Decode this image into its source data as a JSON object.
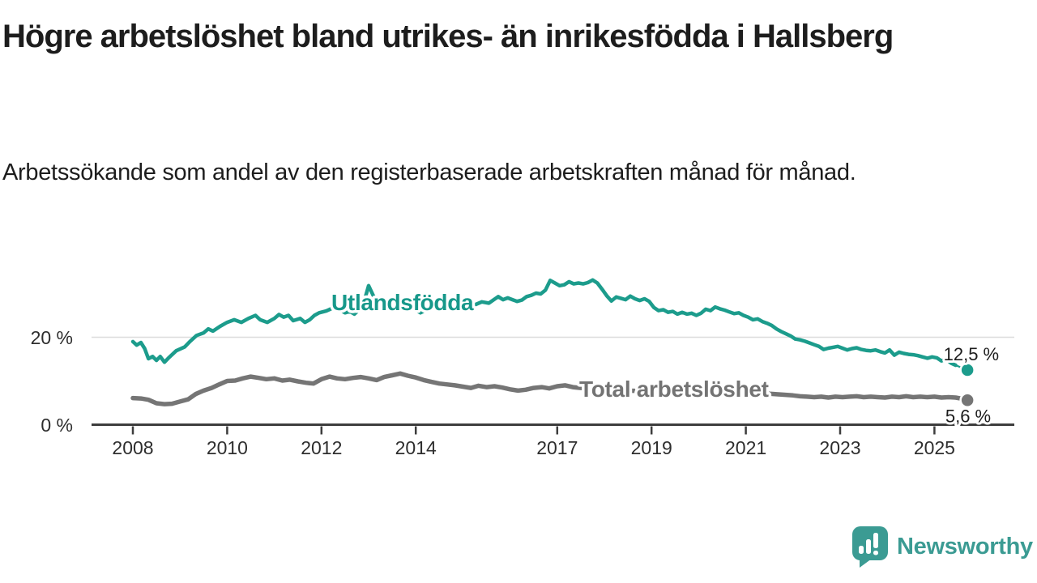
{
  "header": {
    "title": "Högre arbetslöshet bland utrikes- än inrikesfödda i Hallsberg",
    "subtitle": "Arbetssökande som andel av den registerbaserade arbetskraften månad för månad."
  },
  "footer": {
    "brand": "Newsworthy",
    "logo_icon": "newsworthy-speech-bubble-bar-chart",
    "logo_color": "#3b9b93"
  },
  "colors": {
    "accent_teal": "#1c9c8c",
    "series_grey": "#757575",
    "grey_label": "#737373",
    "axis": "#3d3d3d",
    "gridline": "#dcdcdc",
    "text": "#1d1d1d"
  },
  "chart_data": {
    "type": "line",
    "unit": "%",
    "x_range": [
      2008,
      2025.7
    ],
    "x_ticks": [
      {
        "value": 2008,
        "label": "2008"
      },
      {
        "value": 2010,
        "label": "2010"
      },
      {
        "value": 2012,
        "label": "2012"
      },
      {
        "value": 2014,
        "label": "2014"
      },
      {
        "value": 2017,
        "label": "2017"
      },
      {
        "value": 2019,
        "label": "2019"
      },
      {
        "value": 2021,
        "label": "2021"
      },
      {
        "value": 2023,
        "label": "2023"
      },
      {
        "value": 2025,
        "label": "2025"
      }
    ],
    "y_ticks": [
      {
        "value": 0,
        "label": "0 %"
      },
      {
        "value": 20,
        "label": "20 %"
      }
    ],
    "series": [
      {
        "name": "Utlandsfödda",
        "color": "#1c9c8c",
        "end_label": "12,5 %",
        "end_point": [
          2025.7,
          12.5
        ],
        "points": [
          [
            2008.0,
            19.0
          ],
          [
            2008.08,
            18.2
          ],
          [
            2008.17,
            18.8
          ],
          [
            2008.25,
            17.4
          ],
          [
            2008.33,
            15.1
          ],
          [
            2008.42,
            15.6
          ],
          [
            2008.5,
            14.7
          ],
          [
            2008.58,
            15.6
          ],
          [
            2008.67,
            14.3
          ],
          [
            2008.75,
            15.2
          ],
          [
            2008.92,
            16.9
          ],
          [
            2009.1,
            17.8
          ],
          [
            2009.2,
            18.9
          ],
          [
            2009.35,
            20.4
          ],
          [
            2009.5,
            21.0
          ],
          [
            2009.6,
            21.9
          ],
          [
            2009.7,
            21.4
          ],
          [
            2009.85,
            22.5
          ],
          [
            2010.0,
            23.4
          ],
          [
            2010.15,
            24.0
          ],
          [
            2010.3,
            23.4
          ],
          [
            2010.45,
            24.3
          ],
          [
            2010.6,
            25.0
          ],
          [
            2010.7,
            24.0
          ],
          [
            2010.85,
            23.4
          ],
          [
            2011.0,
            24.3
          ],
          [
            2011.1,
            25.2
          ],
          [
            2011.2,
            24.6
          ],
          [
            2011.3,
            25.0
          ],
          [
            2011.4,
            23.8
          ],
          [
            2011.55,
            24.3
          ],
          [
            2011.65,
            23.4
          ],
          [
            2011.75,
            24.0
          ],
          [
            2011.85,
            25.0
          ],
          [
            2011.95,
            25.6
          ],
          [
            2012.1,
            26.0
          ],
          [
            2012.2,
            26.5
          ],
          [
            2012.3,
            27.1
          ],
          [
            2012.4,
            26.2
          ],
          [
            2012.5,
            25.6
          ],
          [
            2012.6,
            25.9
          ],
          [
            2012.7,
            25.3
          ],
          [
            2012.8,
            26.3
          ],
          [
            2012.9,
            28.0
          ],
          [
            2013.0,
            31.8
          ],
          [
            2013.1,
            29.5
          ],
          [
            2013.2,
            27.8
          ],
          [
            2013.3,
            27.2
          ],
          [
            2013.4,
            26.6
          ],
          [
            2013.5,
            27.0
          ],
          [
            2013.6,
            27.1
          ],
          [
            2013.75,
            26.4
          ],
          [
            2013.9,
            26.8
          ],
          [
            2014.0,
            26.2
          ],
          [
            2014.1,
            25.6
          ],
          [
            2014.25,
            26.4
          ],
          [
            2014.4,
            27.1
          ],
          [
            2014.55,
            26.9
          ],
          [
            2014.7,
            26.6
          ],
          [
            2014.85,
            27.0
          ],
          [
            2015.0,
            26.9
          ],
          [
            2015.1,
            27.8
          ],
          [
            2015.25,
            27.4
          ],
          [
            2015.4,
            28.1
          ],
          [
            2015.55,
            27.8
          ],
          [
            2015.75,
            29.3
          ],
          [
            2015.85,
            28.6
          ],
          [
            2015.95,
            29.0
          ],
          [
            2016.05,
            28.6
          ],
          [
            2016.15,
            28.2
          ],
          [
            2016.25,
            28.5
          ],
          [
            2016.35,
            29.3
          ],
          [
            2016.45,
            29.6
          ],
          [
            2016.55,
            30.1
          ],
          [
            2016.65,
            29.9
          ],
          [
            2016.75,
            30.8
          ],
          [
            2016.85,
            33.0
          ],
          [
            2016.95,
            32.4
          ],
          [
            2017.05,
            31.8
          ],
          [
            2017.15,
            32.0
          ],
          [
            2017.25,
            32.7
          ],
          [
            2017.35,
            32.2
          ],
          [
            2017.45,
            32.4
          ],
          [
            2017.55,
            32.2
          ],
          [
            2017.65,
            32.5
          ],
          [
            2017.75,
            33.1
          ],
          [
            2017.85,
            32.4
          ],
          [
            2017.95,
            31.0
          ],
          [
            2018.05,
            29.5
          ],
          [
            2018.15,
            28.3
          ],
          [
            2018.25,
            29.2
          ],
          [
            2018.35,
            28.9
          ],
          [
            2018.45,
            28.6
          ],
          [
            2018.55,
            29.4
          ],
          [
            2018.65,
            28.8
          ],
          [
            2018.75,
            28.4
          ],
          [
            2018.85,
            28.8
          ],
          [
            2018.95,
            28.2
          ],
          [
            2019.05,
            26.8
          ],
          [
            2019.15,
            26.1
          ],
          [
            2019.25,
            26.3
          ],
          [
            2019.35,
            25.7
          ],
          [
            2019.45,
            25.9
          ],
          [
            2019.55,
            25.3
          ],
          [
            2019.65,
            25.7
          ],
          [
            2019.75,
            25.3
          ],
          [
            2019.85,
            25.5
          ],
          [
            2019.95,
            25.0
          ],
          [
            2020.05,
            25.5
          ],
          [
            2020.15,
            26.4
          ],
          [
            2020.25,
            26.1
          ],
          [
            2020.35,
            26.9
          ],
          [
            2020.45,
            26.5
          ],
          [
            2020.55,
            26.2
          ],
          [
            2020.65,
            25.8
          ],
          [
            2020.75,
            25.4
          ],
          [
            2020.85,
            25.6
          ],
          [
            2020.95,
            25.0
          ],
          [
            2021.05,
            24.6
          ],
          [
            2021.15,
            24.0
          ],
          [
            2021.25,
            24.2
          ],
          [
            2021.35,
            23.6
          ],
          [
            2021.45,
            23.2
          ],
          [
            2021.55,
            22.7
          ],
          [
            2021.65,
            21.9
          ],
          [
            2021.75,
            21.3
          ],
          [
            2021.85,
            20.8
          ],
          [
            2021.95,
            20.3
          ],
          [
            2022.05,
            19.6
          ],
          [
            2022.15,
            19.4
          ],
          [
            2022.25,
            19.1
          ],
          [
            2022.35,
            18.7
          ],
          [
            2022.45,
            18.3
          ],
          [
            2022.55,
            17.9
          ],
          [
            2022.65,
            17.2
          ],
          [
            2022.75,
            17.5
          ],
          [
            2022.85,
            17.7
          ],
          [
            2022.95,
            17.9
          ],
          [
            2023.05,
            17.5
          ],
          [
            2023.15,
            17.1
          ],
          [
            2023.25,
            17.4
          ],
          [
            2023.35,
            17.6
          ],
          [
            2023.45,
            17.2
          ],
          [
            2023.55,
            17.0
          ],
          [
            2023.65,
            16.9
          ],
          [
            2023.75,
            17.1
          ],
          [
            2023.85,
            16.7
          ],
          [
            2023.95,
            16.4
          ],
          [
            2024.05,
            17.1
          ],
          [
            2024.15,
            15.9
          ],
          [
            2024.25,
            16.6
          ],
          [
            2024.35,
            16.3
          ],
          [
            2024.45,
            16.1
          ],
          [
            2024.55,
            16.0
          ],
          [
            2024.65,
            15.8
          ],
          [
            2024.75,
            15.5
          ],
          [
            2024.85,
            15.2
          ],
          [
            2024.95,
            15.5
          ],
          [
            2025.05,
            15.3
          ],
          [
            2025.15,
            14.6
          ],
          [
            2025.25,
            15.0
          ],
          [
            2025.35,
            14.1
          ],
          [
            2025.45,
            13.6
          ]
        ]
      },
      {
        "name": "Total arbetslöshet",
        "color": "#757575",
        "end_label": "5,6 %",
        "end_point": [
          2025.7,
          5.6
        ],
        "points": [
          [
            2008.0,
            6.1
          ],
          [
            2008.17,
            6.0
          ],
          [
            2008.33,
            5.7
          ],
          [
            2008.5,
            4.9
          ],
          [
            2008.67,
            4.7
          ],
          [
            2008.83,
            4.8
          ],
          [
            2009.0,
            5.3
          ],
          [
            2009.17,
            5.8
          ],
          [
            2009.33,
            7.0
          ],
          [
            2009.5,
            7.8
          ],
          [
            2009.67,
            8.4
          ],
          [
            2009.83,
            9.2
          ],
          [
            2010.0,
            10.0
          ],
          [
            2010.17,
            10.1
          ],
          [
            2010.33,
            10.6
          ],
          [
            2010.5,
            11.0
          ],
          [
            2010.67,
            10.7
          ],
          [
            2010.83,
            10.4
          ],
          [
            2011.0,
            10.6
          ],
          [
            2011.17,
            10.1
          ],
          [
            2011.33,
            10.3
          ],
          [
            2011.5,
            9.9
          ],
          [
            2011.67,
            9.6
          ],
          [
            2011.83,
            9.4
          ],
          [
            2012.0,
            10.4
          ],
          [
            2012.17,
            11.0
          ],
          [
            2012.33,
            10.6
          ],
          [
            2012.5,
            10.4
          ],
          [
            2012.67,
            10.7
          ],
          [
            2012.83,
            10.9
          ],
          [
            2013.0,
            10.6
          ],
          [
            2013.17,
            10.2
          ],
          [
            2013.33,
            10.9
          ],
          [
            2013.5,
            11.3
          ],
          [
            2013.67,
            11.7
          ],
          [
            2013.83,
            11.2
          ],
          [
            2014.0,
            10.8
          ],
          [
            2014.17,
            10.2
          ],
          [
            2014.33,
            9.8
          ],
          [
            2014.5,
            9.4
          ],
          [
            2014.67,
            9.2
          ],
          [
            2014.83,
            9.0
          ],
          [
            2015.0,
            8.7
          ],
          [
            2015.17,
            8.4
          ],
          [
            2015.33,
            8.9
          ],
          [
            2015.5,
            8.6
          ],
          [
            2015.67,
            8.8
          ],
          [
            2015.83,
            8.5
          ],
          [
            2016.0,
            8.1
          ],
          [
            2016.17,
            7.8
          ],
          [
            2016.33,
            8.0
          ],
          [
            2016.5,
            8.4
          ],
          [
            2016.67,
            8.6
          ],
          [
            2016.83,
            8.3
          ],
          [
            2017.0,
            8.8
          ],
          [
            2017.17,
            9.0
          ],
          [
            2017.33,
            8.6
          ],
          [
            2017.5,
            8.4
          ],
          [
            2017.75,
            8.2
          ],
          [
            2018.0,
            8.1
          ],
          [
            2018.25,
            7.9
          ],
          [
            2018.5,
            7.8
          ],
          [
            2018.75,
            7.7
          ],
          [
            2019.0,
            7.6
          ],
          [
            2019.25,
            7.4
          ],
          [
            2019.5,
            7.3
          ],
          [
            2019.75,
            7.5
          ],
          [
            2020.0,
            7.9
          ],
          [
            2020.25,
            8.4
          ],
          [
            2020.5,
            8.2
          ],
          [
            2020.75,
            7.9
          ],
          [
            2021.0,
            7.6
          ],
          [
            2021.25,
            7.4
          ],
          [
            2021.5,
            7.1
          ],
          [
            2021.75,
            6.9
          ],
          [
            2022.0,
            6.7
          ],
          [
            2022.15,
            6.5
          ],
          [
            2022.3,
            6.4
          ],
          [
            2022.45,
            6.3
          ],
          [
            2022.6,
            6.4
          ],
          [
            2022.75,
            6.2
          ],
          [
            2022.9,
            6.4
          ],
          [
            2023.05,
            6.3
          ],
          [
            2023.2,
            6.4
          ],
          [
            2023.35,
            6.5
          ],
          [
            2023.5,
            6.3
          ],
          [
            2023.65,
            6.4
          ],
          [
            2023.8,
            6.3
          ],
          [
            2023.95,
            6.2
          ],
          [
            2024.1,
            6.4
          ],
          [
            2024.25,
            6.3
          ],
          [
            2024.4,
            6.5
          ],
          [
            2024.55,
            6.3
          ],
          [
            2024.7,
            6.4
          ],
          [
            2024.85,
            6.3
          ],
          [
            2025.0,
            6.4
          ],
          [
            2025.15,
            6.2
          ],
          [
            2025.3,
            6.3
          ],
          [
            2025.45,
            6.2
          ],
          [
            2025.6,
            5.9
          ],
          [
            2025.68,
            5.6
          ]
        ]
      }
    ]
  }
}
